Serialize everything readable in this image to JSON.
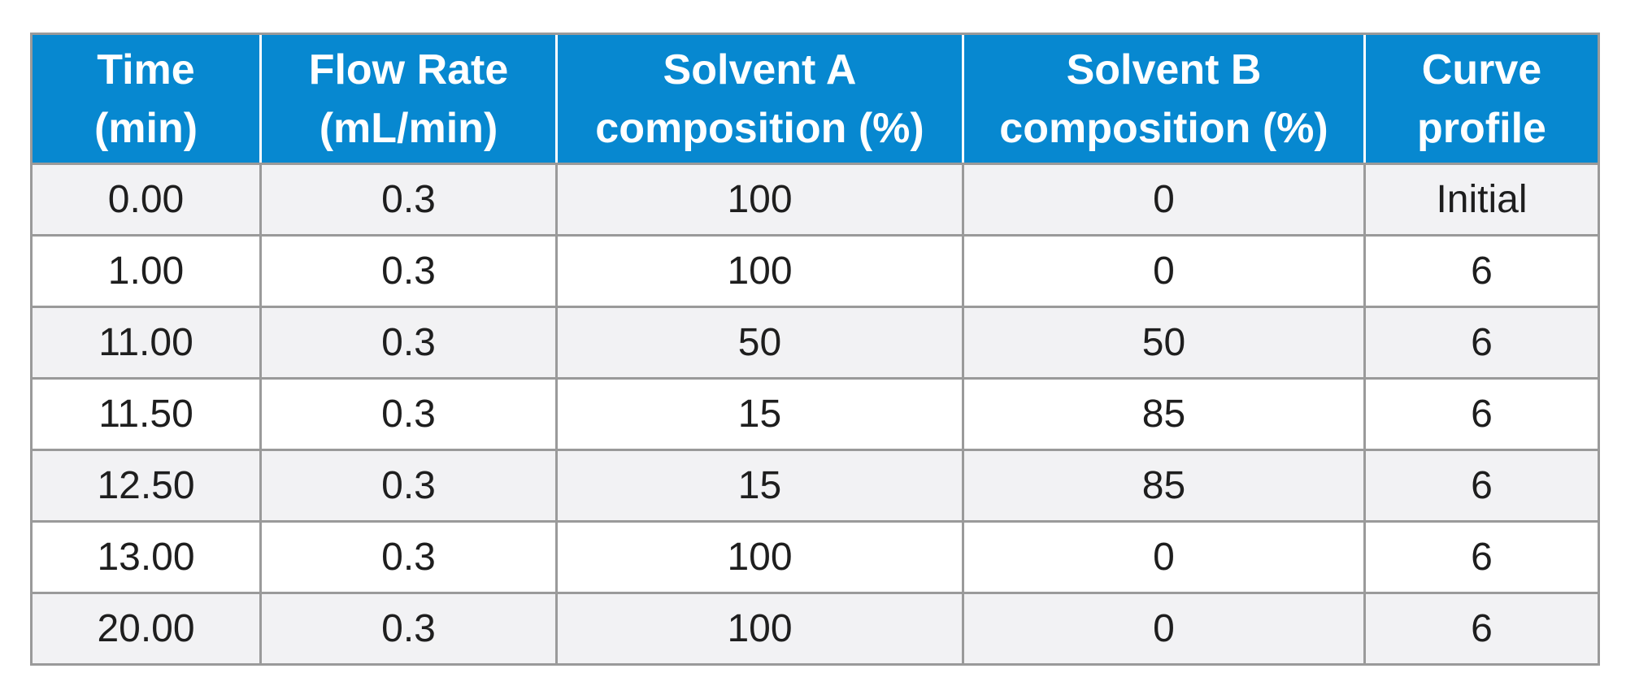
{
  "table": {
    "headers": [
      [
        "Time",
        "(min)"
      ],
      [
        "Flow Rate",
        "(mL/min)"
      ],
      [
        "Solvent A",
        "composition (%)"
      ],
      [
        "Solvent B",
        "composition (%)"
      ],
      [
        "Curve",
        "profile"
      ]
    ],
    "rows": [
      [
        "0.00",
        "0.3",
        "100",
        "0",
        "Initial"
      ],
      [
        "1.00",
        "0.3",
        "100",
        "0",
        "6"
      ],
      [
        "11.00",
        "0.3",
        "50",
        "50",
        "6"
      ],
      [
        "11.50",
        "0.3",
        "15",
        "85",
        "6"
      ],
      [
        "12.50",
        "0.3",
        "15",
        "85",
        "6"
      ],
      [
        "13.00",
        "0.3",
        "100",
        "0",
        "6"
      ],
      [
        "20.00",
        "0.3",
        "100",
        "0",
        "6"
      ]
    ],
    "colors": {
      "header_bg": "#0788d0",
      "header_text": "#ffffff",
      "row_odd_bg": "#f2f2f4",
      "row_even_bg": "#ffffff",
      "grid_line": "#9a9a9a",
      "body_text": "#1e1e1e"
    }
  }
}
